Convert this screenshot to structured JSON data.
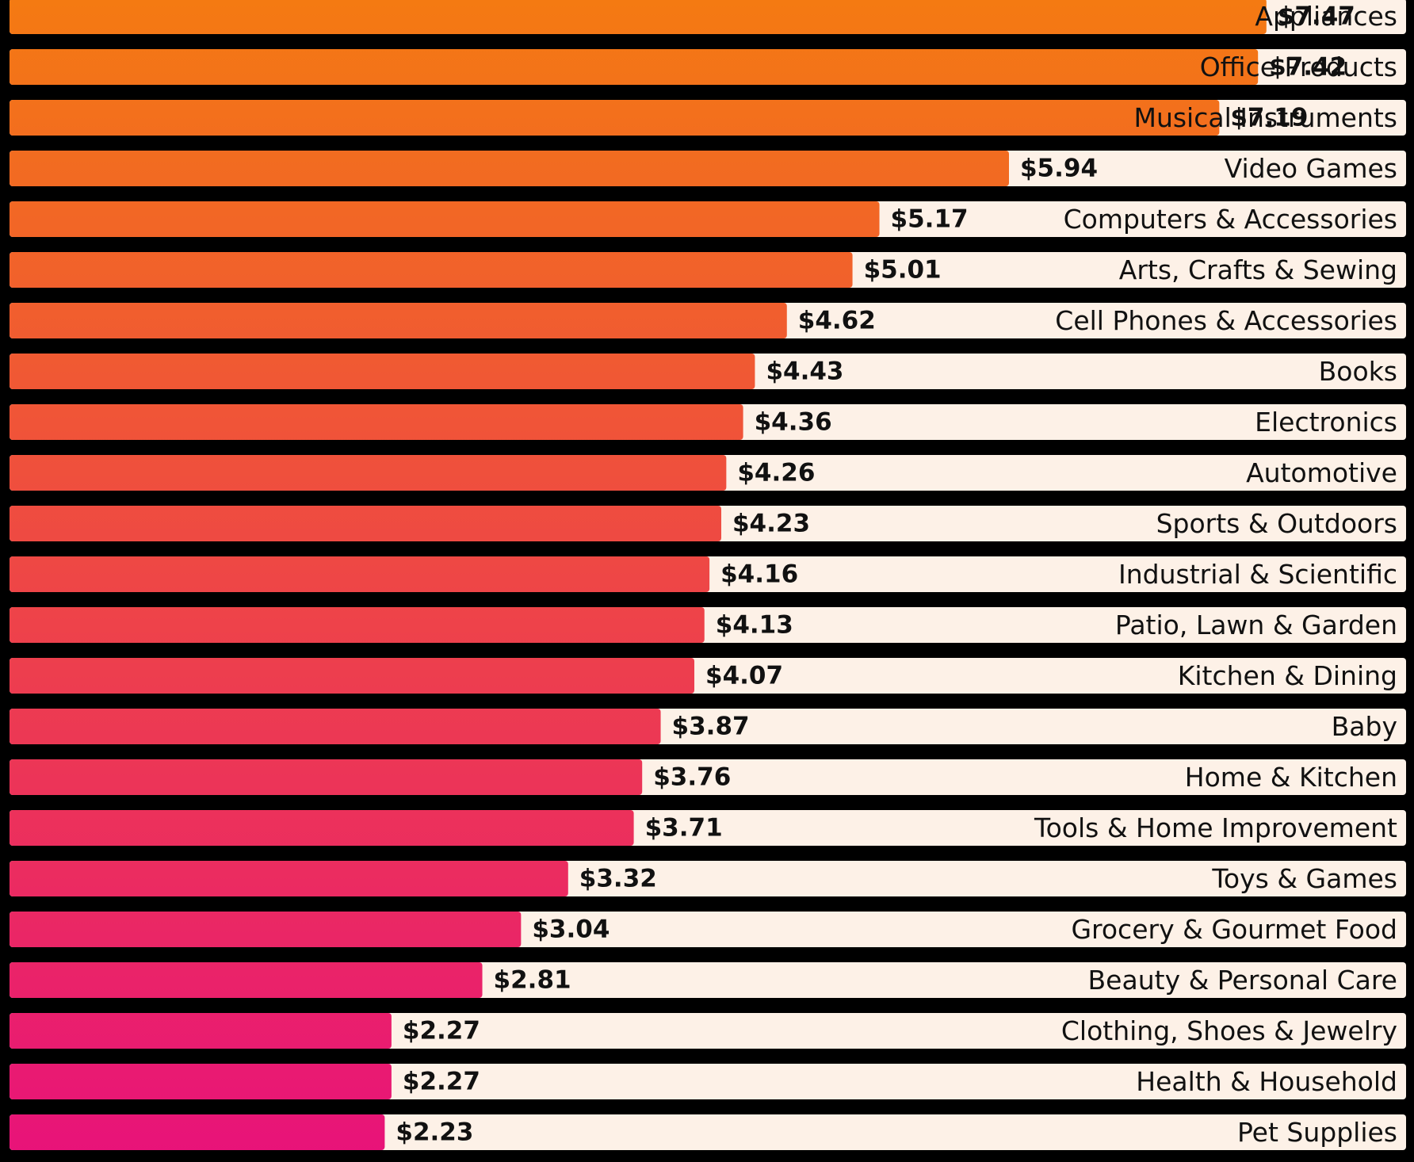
{
  "chart_data": {
    "type": "bar",
    "orientation": "horizontal",
    "title": "",
    "xlabel": "",
    "ylabel": "",
    "value_prefix": "$",
    "xlim": [
      0,
      8.3
    ],
    "grid": false,
    "legend": "none",
    "colors": {
      "background": "#000000",
      "track": "#fdf1e7",
      "bar_top": "#f47a12",
      "bar_bottom": "#e8127a",
      "text": "#111111"
    },
    "categories": [
      "Appliances",
      "Office Products",
      "Musical Instruments",
      "Video Games",
      "Computers & Accessories",
      "Arts, Crafts & Sewing",
      "Cell Phones & Accessories",
      "Books",
      "Electronics",
      "Automotive",
      "Sports & Outdoors",
      "Industrial & Scientific",
      "Patio, Lawn & Garden",
      "Kitchen & Dining",
      "Baby",
      "Home & Kitchen",
      "Tools & Home Improvement",
      "Toys & Games",
      "Grocery & Gourmet Food",
      "Beauty & Personal Care",
      "Clothing, Shoes & Jewelry",
      "Health & Household",
      "Pet Supplies"
    ],
    "values": [
      7.47,
      7.42,
      7.19,
      5.94,
      5.17,
      5.01,
      4.62,
      4.43,
      4.36,
      4.26,
      4.23,
      4.16,
      4.13,
      4.07,
      3.87,
      3.76,
      3.71,
      3.32,
      3.04,
      2.81,
      2.27,
      2.27,
      2.23
    ],
    "value_labels": [
      "$7.47",
      "$7.42",
      "$7.19",
      "$5.94",
      "$5.17",
      "$5.01",
      "$4.62",
      "$4.43",
      "$4.36",
      "$4.26",
      "$4.23",
      "$4.16",
      "$4.13",
      "$4.07",
      "$3.87",
      "$3.76",
      "$3.71",
      "$3.32",
      "$3.04",
      "$2.81",
      "$2.27",
      "$2.27",
      "$2.23"
    ]
  }
}
